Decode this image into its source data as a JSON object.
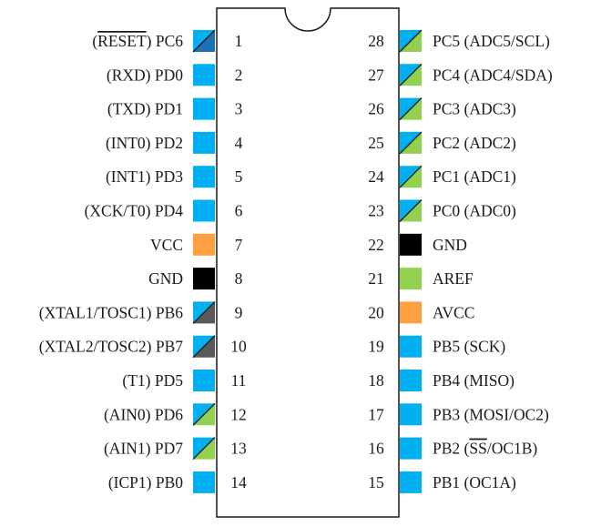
{
  "colors": {
    "digital": "#00b0f0",
    "analog": "#92d050",
    "power": "#ffa040",
    "ground": "#000000",
    "crystal": "#595959",
    "outline": "#1a1a1a"
  },
  "left_pins": [
    {
      "num": "1",
      "pre": "(",
      "over": "RESET",
      "post": ") PC6",
      "style": "split",
      "c1": "digital",
      "c2": "reset"
    },
    {
      "num": "2",
      "pre": "(RXD) PD0",
      "style": "solid",
      "c1": "digital"
    },
    {
      "num": "3",
      "pre": "(TXD) PD1",
      "style": "solid",
      "c1": "digital"
    },
    {
      "num": "4",
      "pre": "(INT0) PD2",
      "style": "solid",
      "c1": "digital"
    },
    {
      "num": "5",
      "pre": "(INT1) PD3",
      "style": "solid",
      "c1": "digital"
    },
    {
      "num": "6",
      "pre": "(XCK/T0) PD4",
      "style": "solid",
      "c1": "digital"
    },
    {
      "num": "7",
      "pre": "VCC",
      "style": "solid",
      "c1": "power"
    },
    {
      "num": "8",
      "pre": "GND",
      "style": "solid",
      "c1": "ground"
    },
    {
      "num": "9",
      "pre": "(XTAL1/TOSC1) PB6",
      "style": "split",
      "c1": "digital",
      "c2": "crystal"
    },
    {
      "num": "10",
      "pre": "(XTAL2/TOSC2) PB7",
      "style": "split",
      "c1": "digital",
      "c2": "crystal"
    },
    {
      "num": "11",
      "pre": "(T1) PD5",
      "style": "solid",
      "c1": "digital"
    },
    {
      "num": "12",
      "pre": "(AIN0) PD6",
      "style": "split",
      "c1": "digital",
      "c2": "analog"
    },
    {
      "num": "13",
      "pre": "(AIN1) PD7",
      "style": "split",
      "c1": "digital",
      "c2": "analog"
    },
    {
      "num": "14",
      "pre": "(ICP1) PB0",
      "style": "solid",
      "c1": "digital"
    }
  ],
  "right_pins": [
    {
      "num": "28",
      "pre": "PC5 (ADC5/SCL)",
      "style": "split",
      "c1": "digital",
      "c2": "analog"
    },
    {
      "num": "27",
      "pre": "PC4 (ADC4/SDA)",
      "style": "split",
      "c1": "digital",
      "c2": "analog"
    },
    {
      "num": "26",
      "pre": "PC3 (ADC3)",
      "style": "split",
      "c1": "digital",
      "c2": "analog"
    },
    {
      "num": "25",
      "pre": "PC2 (ADC2)",
      "style": "split",
      "c1": "digital",
      "c2": "analog"
    },
    {
      "num": "24",
      "pre": "PC1 (ADC1)",
      "style": "split",
      "c1": "digital",
      "c2": "analog"
    },
    {
      "num": "23",
      "pre": "PC0 (ADC0)",
      "style": "split",
      "c1": "digital",
      "c2": "analog"
    },
    {
      "num": "22",
      "pre": "GND",
      "style": "solid",
      "c1": "ground"
    },
    {
      "num": "21",
      "pre": "AREF",
      "style": "solid",
      "c1": "analog"
    },
    {
      "num": "20",
      "pre": "AVCC",
      "style": "solid",
      "c1": "power"
    },
    {
      "num": "19",
      "pre": "PB5 (SCK)",
      "style": "solid",
      "c1": "digital"
    },
    {
      "num": "18",
      "pre": "PB4 (MISO)",
      "style": "solid",
      "c1": "digital"
    },
    {
      "num": "17",
      "pre": "PB3 (MOSI/OC2)",
      "style": "solid",
      "c1": "digital"
    },
    {
      "num": "16",
      "pre": "PB2 (",
      "over": "SS",
      "post": "/OC1B)",
      "style": "solid",
      "c1": "digital"
    },
    {
      "num": "15",
      "pre": "PB1 (OC1A)",
      "style": "solid",
      "c1": "digital"
    }
  ]
}
